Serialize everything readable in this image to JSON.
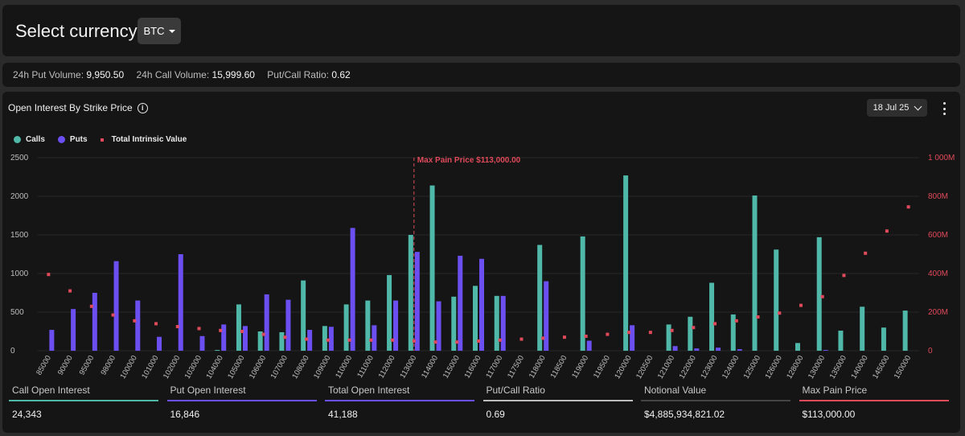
{
  "header": {
    "select_label": "Select currency:",
    "currency": "BTC"
  },
  "stats": [
    {
      "label": "24h Put Volume:",
      "value": "9,950.50"
    },
    {
      "label": "24h Call Volume:",
      "value": "15,999.60"
    },
    {
      "label": "Put/Call Ratio:",
      "value": "0.62"
    }
  ],
  "card": {
    "title": "Open Interest By Strike Price",
    "info_icon": "info-icon",
    "expiry": "18 Jul 25",
    "menu_icon": "kebab-menu-icon"
  },
  "colors": {
    "calls": "#4fb8a8",
    "puts": "#6b4ff0",
    "intrinsic": "#e04a5a",
    "max_pain": "#e04a5a"
  },
  "chart_data": {
    "type": "bar",
    "legend": [
      "Calls",
      "Puts",
      "Total Intrinsic Value"
    ],
    "categories": [
      "85000",
      "90000",
      "95000",
      "98000",
      "100000",
      "101000",
      "102000",
      "103000",
      "104000",
      "105000",
      "106000",
      "107000",
      "108000",
      "109000",
      "110000",
      "111000",
      "112000",
      "113000",
      "114000",
      "115000",
      "116000",
      "117000",
      "117500",
      "118000",
      "118500",
      "119000",
      "119500",
      "120000",
      "120500",
      "121000",
      "122000",
      "123000",
      "124000",
      "125000",
      "126000",
      "128000",
      "130000",
      "135000",
      "140000",
      "145000",
      "150000"
    ],
    "series": [
      {
        "name": "Calls",
        "axis": "left",
        "values": [
          0,
          0,
          0,
          0,
          0,
          0,
          0,
          0,
          10,
          600,
          250,
          240,
          910,
          320,
          600,
          650,
          980,
          1500,
          2140,
          700,
          840,
          710,
          0,
          1370,
          0,
          1480,
          0,
          2270,
          0,
          340,
          440,
          880,
          470,
          2010,
          1310,
          100,
          1470,
          260,
          570,
          300,
          520
        ]
      },
      {
        "name": "Puts",
        "axis": "left",
        "values": [
          270,
          540,
          750,
          1160,
          650,
          180,
          1250,
          190,
          340,
          320,
          730,
          660,
          270,
          310,
          1590,
          330,
          650,
          1280,
          640,
          1230,
          1190,
          710,
          0,
          900,
          0,
          130,
          0,
          330,
          0,
          60,
          30,
          40,
          20,
          0,
          0,
          0,
          10,
          0,
          0,
          0,
          0
        ]
      },
      {
        "name": "Total Intrinsic Value",
        "axis": "right",
        "type": "scatter",
        "values": [
          395,
          310,
          230,
          185,
          155,
          140,
          125,
          115,
          105,
          100,
          85,
          70,
          60,
          55,
          55,
          55,
          55,
          50,
          45,
          45,
          50,
          55,
          60,
          65,
          70,
          75,
          85,
          95,
          95,
          105,
          120,
          140,
          155,
          175,
          195,
          235,
          280,
          390,
          505,
          620,
          745
        ]
      }
    ],
    "max_pain": {
      "strike": "113000",
      "label": "Max Pain Price $113,000.00"
    },
    "ylim_left": [
      0,
      2500
    ],
    "yticks_left": [
      "0",
      "500",
      "1000",
      "1500",
      "2000",
      "2500"
    ],
    "ylim_right": [
      0,
      1000
    ],
    "yticks_right": [
      "0",
      "200M",
      "400M",
      "600M",
      "800M",
      "1 000M"
    ]
  },
  "summary": [
    {
      "label": "Call Open Interest",
      "value": "24,343",
      "color": "#4fb8a8"
    },
    {
      "label": "Put Open Interest",
      "value": "16,846",
      "color": "#6b4ff0"
    },
    {
      "label": "Total Open Interest",
      "value": "41,188",
      "color": "#6b4ff0"
    },
    {
      "label": "Put/Call Ratio",
      "value": "0.69",
      "color": "#bdbdbd"
    },
    {
      "label": "Notional Value",
      "value": "$4,885,934,821.02",
      "color": "#444444"
    },
    {
      "label": "Max Pain Price",
      "value": "$113,000.00",
      "color": "#e04a5a"
    }
  ]
}
